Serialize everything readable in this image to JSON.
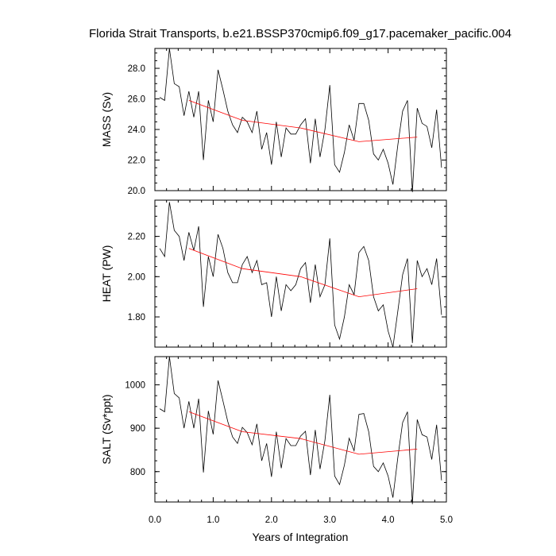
{
  "chart_data": {
    "type": "line",
    "title": "Florida Strait Transports, b.e21.BSSP370cmip6.f09_g17.pacemaker_pacific.004",
    "xlabel": "Years of Integration",
    "xlim": [
      0,
      5
    ],
    "x_ticks": [
      0,
      1,
      2,
      3,
      4,
      5
    ],
    "x_tick_labels": [
      "0.0",
      "1.0",
      "2.0",
      "3.0",
      "4.0",
      "5.0"
    ],
    "x": [
      0.083,
      0.167,
      0.25,
      0.333,
      0.417,
      0.5,
      0.583,
      0.667,
      0.75,
      0.833,
      0.917,
      1.0,
      1.083,
      1.167,
      1.25,
      1.333,
      1.417,
      1.5,
      1.583,
      1.667,
      1.75,
      1.833,
      1.917,
      2.0,
      2.083,
      2.167,
      2.25,
      2.333,
      2.417,
      2.5,
      2.583,
      2.667,
      2.75,
      2.833,
      2.917,
      3.0,
      3.083,
      3.167,
      3.25,
      3.333,
      3.417,
      3.5,
      3.583,
      3.667,
      3.75,
      3.833,
      3.917,
      4.0,
      4.083,
      4.167,
      4.25,
      4.333,
      4.417,
      4.5,
      4.583,
      4.667,
      4.75,
      4.833,
      4.917
    ],
    "panels": [
      {
        "ylabel": "MASS (Sv)",
        "ylim": [
          20.0,
          29.3
        ],
        "y_ticks": [
          20,
          22,
          24,
          26,
          28
        ],
        "y_tick_labels": [
          "20.0",
          "22.0",
          "24.0",
          "26.0",
          "28.0"
        ],
        "values": [
          26.1,
          25.9,
          29.3,
          27.0,
          26.8,
          24.9,
          26.5,
          24.8,
          26.5,
          22.0,
          25.9,
          24.5,
          27.9,
          26.6,
          25.2,
          24.3,
          23.8,
          24.8,
          24.5,
          23.8,
          25.2,
          22.7,
          23.8,
          21.7,
          24.5,
          22.2,
          24.1,
          23.7,
          23.7,
          24.3,
          24.7,
          21.8,
          24.7,
          22.2,
          24.0,
          26.9,
          21.7,
          21.2,
          22.5,
          24.3,
          23.3,
          25.7,
          25.7,
          24.6,
          22.4,
          22.0,
          22.7,
          21.8,
          20.4,
          23.0,
          25.2,
          25.9,
          19.9,
          25.4,
          24.4,
          24.2,
          22.8,
          25.3,
          21.5
        ],
        "trend": {
          "x": [
            0.583,
            1.5,
            2.5,
            3.5,
            4.5
          ],
          "values": [
            25.9,
            24.6,
            24.1,
            23.2,
            23.5
          ]
        }
      },
      {
        "ylabel": "HEAT (PW)",
        "ylim": [
          1.65,
          2.38
        ],
        "y_ticks": [
          1.8,
          2.0,
          2.2
        ],
        "y_tick_labels": [
          "1.80",
          "2.00",
          "2.20"
        ],
        "values": [
          2.14,
          2.1,
          2.37,
          2.23,
          2.2,
          2.08,
          2.22,
          2.13,
          2.25,
          1.85,
          2.1,
          2.0,
          2.21,
          2.14,
          2.02,
          1.97,
          1.97,
          2.06,
          2.1,
          2.02,
          2.08,
          1.96,
          1.97,
          1.8,
          2.0,
          1.83,
          1.96,
          1.93,
          1.96,
          2.04,
          2.07,
          1.87,
          2.06,
          1.9,
          1.96,
          2.19,
          1.76,
          1.69,
          1.8,
          1.96,
          1.91,
          2.12,
          2.15,
          2.08,
          1.9,
          1.83,
          1.86,
          1.73,
          1.65,
          1.83,
          2.01,
          2.09,
          1.67,
          2.08,
          2.0,
          2.04,
          1.96,
          2.09,
          1.81
        ],
        "trend": {
          "x": [
            0.583,
            1.5,
            2.5,
            3.5,
            4.5
          ],
          "values": [
            2.14,
            2.04,
            2.0,
            1.9,
            1.94
          ]
        }
      },
      {
        "ylabel": "SALT (Sv*ppt)",
        "ylim": [
          730,
          1065
        ],
        "y_ticks": [
          800,
          900,
          1000
        ],
        "y_tick_labels": [
          "800",
          "900",
          "1000"
        ],
        "values": [
          945,
          938,
          1065,
          980,
          970,
          900,
          962,
          900,
          968,
          798,
          940,
          886,
          1010,
          963,
          915,
          880,
          865,
          902,
          890,
          862,
          910,
          825,
          865,
          788,
          892,
          808,
          876,
          860,
          860,
          882,
          893,
          792,
          896,
          806,
          872,
          977,
          790,
          770,
          815,
          877,
          848,
          932,
          934,
          892,
          812,
          800,
          820,
          790,
          740,
          833,
          913,
          938,
          725,
          920,
          885,
          880,
          828,
          908,
          780
        ],
        "trend": {
          "x": [
            0.583,
            1.5,
            2.5,
            3.5,
            4.5
          ],
          "values": [
            938,
            892,
            876,
            840,
            852
          ]
        }
      }
    ]
  }
}
